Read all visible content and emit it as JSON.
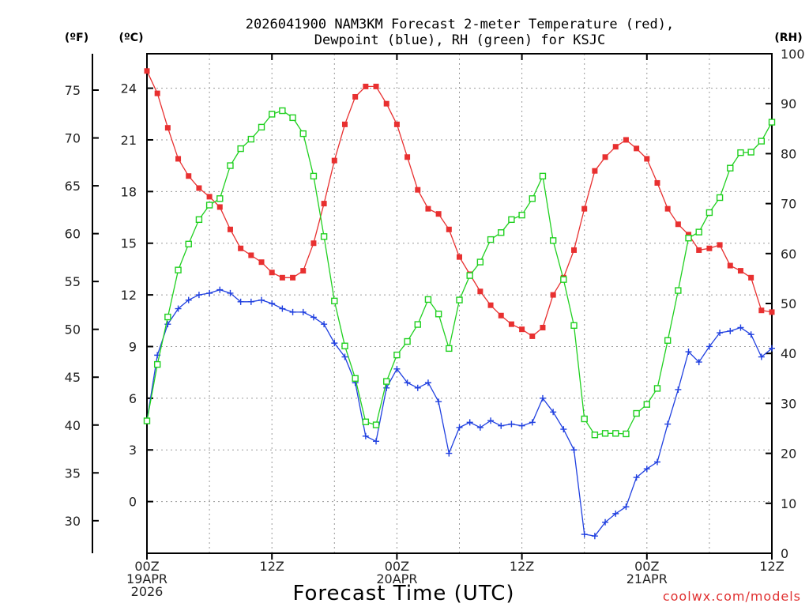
{
  "chart_data": {
    "type": "line",
    "title": [
      "2026041900 NAM3KM Forecast 2-meter Temperature (red),",
      "Dewpoint (blue), RH (green) for KSJC"
    ],
    "xlabel": "Forecast Time (UTC)",
    "credit": "coolwx.com/models",
    "units": {
      "f": "(ºF)",
      "c": "(ºC)",
      "rh": "(RH)"
    },
    "xlim": [
      0,
      60
    ],
    "ylim_c": [
      -3,
      26
    ],
    "ylim_rh": [
      0,
      100
    ],
    "x_ticks": [
      {
        "x": 0,
        "lines": [
          "00Z",
          "19APR",
          "2026"
        ]
      },
      {
        "x": 12,
        "lines": [
          "12Z"
        ]
      },
      {
        "x": 24,
        "lines": [
          "00Z",
          "20APR"
        ]
      },
      {
        "x": 36,
        "lines": [
          "12Z"
        ]
      },
      {
        "x": 48,
        "lines": [
          "00Z",
          "21APR"
        ]
      },
      {
        "x": 60,
        "lines": [
          "12Z"
        ]
      }
    ],
    "c_ticks": [
      0,
      3,
      6,
      9,
      12,
      15,
      18,
      21,
      24
    ],
    "f_ticks": [
      30,
      35,
      40,
      45,
      50,
      55,
      60,
      65,
      70,
      75
    ],
    "rh_ticks": [
      0,
      10,
      20,
      30,
      40,
      50,
      60,
      70,
      80,
      90,
      100
    ],
    "x": [
      0,
      1,
      2,
      3,
      4,
      5,
      6,
      7,
      8,
      9,
      10,
      11,
      12,
      13,
      14,
      15,
      16,
      17,
      18,
      19,
      20,
      21,
      22,
      23,
      24,
      25,
      26,
      27,
      28,
      29,
      30,
      31,
      32,
      33,
      34,
      35,
      36,
      37,
      38,
      39,
      40,
      41,
      42,
      43,
      44,
      45,
      46,
      47,
      48,
      49,
      50,
      51,
      52,
      53,
      54,
      55,
      56,
      57,
      58,
      59,
      60
    ],
    "series": [
      {
        "name": "2-meter Temperature",
        "unit": "C",
        "color": "#e83030",
        "marker": "filled-square",
        "values": [
          25.0,
          23.7,
          21.7,
          19.9,
          18.9,
          18.2,
          17.7,
          17.1,
          15.8,
          14.7,
          14.3,
          13.9,
          13.3,
          13.0,
          13.0,
          13.4,
          15.0,
          17.3,
          19.8,
          21.9,
          23.5,
          24.1,
          24.1,
          23.1,
          21.9,
          20.0,
          18.1,
          17.0,
          16.7,
          15.8,
          14.2,
          13.2,
          12.2,
          11.4,
          10.8,
          10.3,
          10.0,
          9.6,
          10.1,
          12.0,
          13.0,
          14.6,
          17.0,
          19.2,
          20.0,
          20.6,
          21.0,
          20.5,
          19.9,
          18.5,
          17.0,
          16.1,
          15.5,
          14.6,
          14.7,
          14.9,
          13.7,
          13.4,
          13.0,
          11.1,
          11.0
        ]
      },
      {
        "name": "Dewpoint",
        "unit": "C",
        "color": "#2040e0",
        "marker": "plus",
        "values": [
          4.7,
          8.5,
          10.3,
          11.2,
          11.7,
          12.0,
          12.1,
          12.3,
          12.1,
          11.6,
          11.6,
          11.7,
          11.5,
          11.2,
          11.0,
          11.0,
          10.7,
          10.3,
          9.2,
          8.4,
          6.9,
          3.8,
          3.5,
          6.6,
          7.7,
          6.9,
          6.6,
          6.9,
          5.8,
          2.8,
          4.3,
          4.6,
          4.3,
          4.7,
          4.4,
          4.5,
          4.4,
          4.6,
          6.0,
          5.2,
          4.2,
          3.0,
          -1.9,
          -2.0,
          -1.2,
          -0.7,
          -0.3,
          1.4,
          1.9,
          2.3,
          4.5,
          6.5,
          8.7,
          8.1,
          9.0,
          9.8,
          9.9,
          10.1,
          9.7,
          8.4,
          8.9
        ]
      },
      {
        "name": "RH",
        "unit": "%",
        "color": "#20d020",
        "marker": "open-square",
        "values": [
          26.5,
          37.8,
          47.3,
          56.7,
          61.9,
          66.8,
          69.7,
          71.0,
          77.6,
          81.0,
          82.9,
          85.3,
          87.9,
          88.6,
          87.2,
          84.0,
          75.5,
          63.4,
          50.5,
          41.5,
          35.0,
          26.3,
          25.7,
          34.4,
          39.7,
          42.4,
          45.8,
          50.8,
          47.9,
          41.0,
          50.7,
          55.6,
          58.3,
          62.8,
          64.2,
          66.8,
          67.7,
          71.0,
          75.5,
          62.6,
          54.8,
          45.6,
          26.9,
          23.7,
          24.0,
          24.0,
          23.9,
          28.0,
          29.8,
          33.0,
          42.6,
          52.6,
          63.1,
          64.3,
          68.2,
          71.2,
          77.1,
          80.2,
          80.3,
          82.5,
          86.3
        ]
      }
    ]
  }
}
